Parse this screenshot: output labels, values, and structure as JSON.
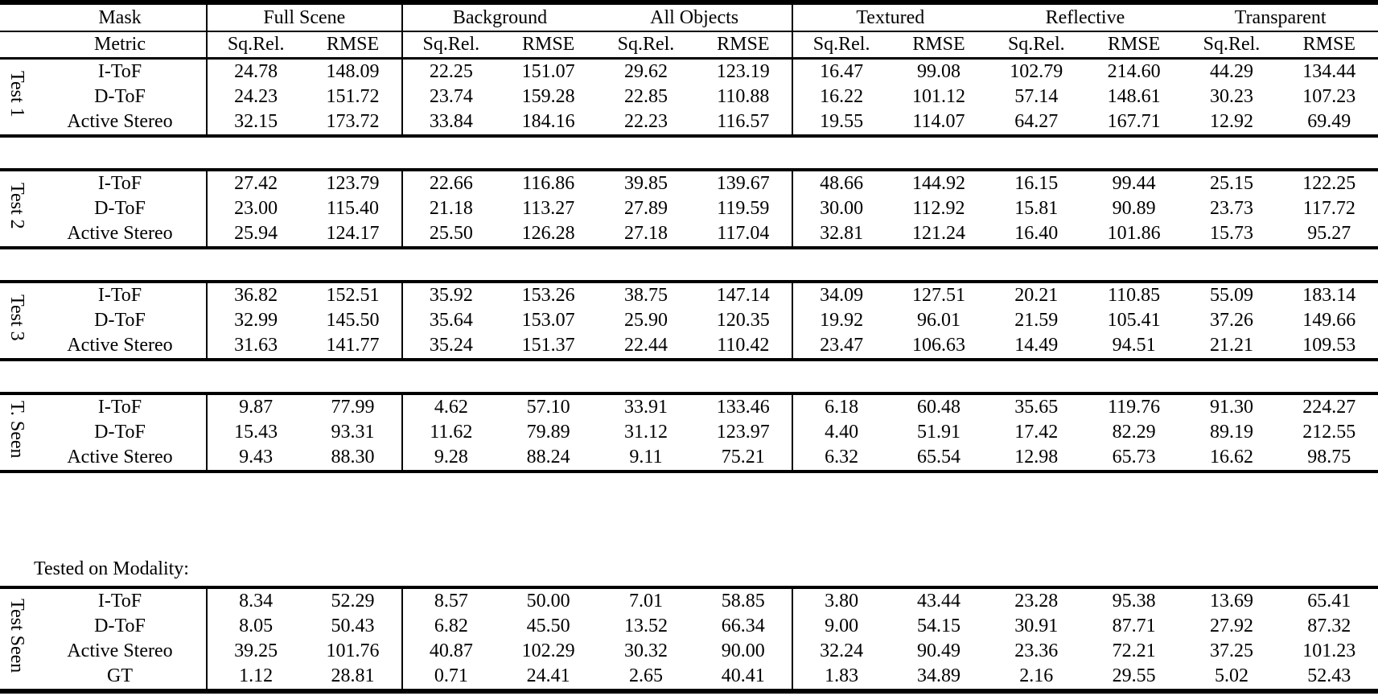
{
  "header": {
    "mask": "Mask",
    "metric": "Metric",
    "groups": [
      {
        "label": "Full Scene"
      },
      {
        "label": "Background"
      },
      {
        "label": "All Objects"
      },
      {
        "label": "Textured"
      },
      {
        "label": "Reflective"
      },
      {
        "label": "Transparent"
      }
    ],
    "sub_metrics": [
      "Sq.Rel.",
      "RMSE"
    ]
  },
  "note": "Tested on Modality:",
  "colors": {
    "text": "#000000",
    "background": "#ffffff",
    "rule": "#000000"
  },
  "sections": [
    {
      "label": "Test 1",
      "rows": [
        {
          "name": "I-ToF",
          "values": [
            "24.78",
            "148.09",
            "22.25",
            "151.07",
            "29.62",
            "123.19",
            "16.47",
            "99.08",
            "102.79",
            "214.60",
            "44.29",
            "134.44"
          ]
        },
        {
          "name": "D-ToF",
          "values": [
            "24.23",
            "151.72",
            "23.74",
            "159.28",
            "22.85",
            "110.88",
            "16.22",
            "101.12",
            "57.14",
            "148.61",
            "30.23",
            "107.23"
          ]
        },
        {
          "name": "Active Stereo",
          "values": [
            "32.15",
            "173.72",
            "33.84",
            "184.16",
            "22.23",
            "116.57",
            "19.55",
            "114.07",
            "64.27",
            "167.71",
            "12.92",
            "69.49"
          ]
        }
      ]
    },
    {
      "label": "Test 2",
      "rows": [
        {
          "name": "I-ToF",
          "values": [
            "27.42",
            "123.79",
            "22.66",
            "116.86",
            "39.85",
            "139.67",
            "48.66",
            "144.92",
            "16.15",
            "99.44",
            "25.15",
            "122.25"
          ]
        },
        {
          "name": "D-ToF",
          "values": [
            "23.00",
            "115.40",
            "21.18",
            "113.27",
            "27.89",
            "119.59",
            "30.00",
            "112.92",
            "15.81",
            "90.89",
            "23.73",
            "117.72"
          ]
        },
        {
          "name": "Active Stereo",
          "values": [
            "25.94",
            "124.17",
            "25.50",
            "126.28",
            "27.18",
            "117.04",
            "32.81",
            "121.24",
            "16.40",
            "101.86",
            "15.73",
            "95.27"
          ]
        }
      ]
    },
    {
      "label": "Test 3",
      "rows": [
        {
          "name": "I-ToF",
          "values": [
            "36.82",
            "152.51",
            "35.92",
            "153.26",
            "38.75",
            "147.14",
            "34.09",
            "127.51",
            "20.21",
            "110.85",
            "55.09",
            "183.14"
          ]
        },
        {
          "name": "D-ToF",
          "values": [
            "32.99",
            "145.50",
            "35.64",
            "153.07",
            "25.90",
            "120.35",
            "19.92",
            "96.01",
            "21.59",
            "105.41",
            "37.26",
            "149.66"
          ]
        },
        {
          "name": "Active Stereo",
          "values": [
            "31.63",
            "141.77",
            "35.24",
            "151.37",
            "22.44",
            "110.42",
            "23.47",
            "106.63",
            "14.49",
            "94.51",
            "21.21",
            "109.53"
          ]
        }
      ]
    },
    {
      "label": "T. Seen",
      "rows": [
        {
          "name": "I-ToF",
          "values": [
            "9.87",
            "77.99",
            "4.62",
            "57.10",
            "33.91",
            "133.46",
            "6.18",
            "60.48",
            "35.65",
            "119.76",
            "91.30",
            "224.27"
          ]
        },
        {
          "name": "D-ToF",
          "values": [
            "15.43",
            "93.31",
            "11.62",
            "79.89",
            "31.12",
            "123.97",
            "4.40",
            "51.91",
            "17.42",
            "82.29",
            "89.19",
            "212.55"
          ]
        },
        {
          "name": "Active Stereo",
          "values": [
            "9.43",
            "88.30",
            "9.28",
            "88.24",
            "9.11",
            "75.21",
            "6.32",
            "65.54",
            "12.98",
            "65.73",
            "16.62",
            "98.75"
          ]
        }
      ]
    },
    {
      "label": "Test Seen",
      "rows": [
        {
          "name": "I-ToF",
          "values": [
            "8.34",
            "52.29",
            "8.57",
            "50.00",
            "7.01",
            "58.85",
            "3.80",
            "43.44",
            "23.28",
            "95.38",
            "13.69",
            "65.41"
          ]
        },
        {
          "name": "D-ToF",
          "values": [
            "8.05",
            "50.43",
            "6.82",
            "45.50",
            "13.52",
            "66.34",
            "9.00",
            "54.15",
            "30.91",
            "87.71",
            "27.92",
            "87.32"
          ]
        },
        {
          "name": "Active Stereo",
          "values": [
            "39.25",
            "101.76",
            "40.87",
            "102.29",
            "30.32",
            "90.00",
            "32.24",
            "90.49",
            "23.36",
            "72.21",
            "37.25",
            "101.23"
          ]
        },
        {
          "name": "GT",
          "values": [
            "1.12",
            "28.81",
            "0.71",
            "24.41",
            "2.65",
            "40.41",
            "1.83",
            "34.89",
            "2.16",
            "29.55",
            "5.02",
            "52.43"
          ]
        }
      ]
    }
  ]
}
